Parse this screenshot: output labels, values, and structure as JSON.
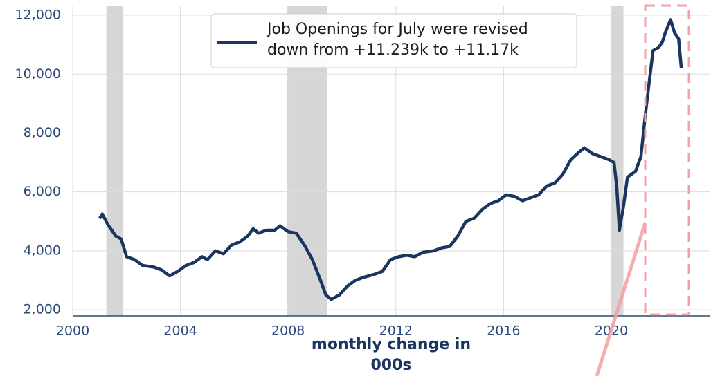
{
  "chart_data": {
    "type": "line",
    "xlabel": "monthly change in 000s",
    "xlim": [
      2000,
      2023.65
    ],
    "ylim": [
      1790,
      12330
    ],
    "xticks": [
      2000,
      2004,
      2008,
      2012,
      2016,
      2020
    ],
    "yticks": [
      {
        "value": 2000,
        "label": "2,000"
      },
      {
        "value": 4000,
        "label": "4,000"
      },
      {
        "value": 6000,
        "label": "6,000"
      },
      {
        "value": 8000,
        "label": "8,000"
      },
      {
        "value": 10000,
        "label": "10,000"
      },
      {
        "value": 12000,
        "label": "12,000"
      }
    ],
    "grid": true,
    "legend": "upper center",
    "shaded_periods": [
      [
        2001.25,
        2001.88
      ],
      [
        2007.95,
        2009.45
      ],
      [
        2020.0,
        2020.45
      ]
    ],
    "series": [
      {
        "name": "Job Openings for July were revised down from +11.239k to +11.17k",
        "color": "#1a3560",
        "x": [
          2001.0,
          2001.1,
          2001.3,
          2001.6,
          2001.8,
          2002.0,
          2002.3,
          2002.6,
          2003.0,
          2003.3,
          2003.6,
          2003.9,
          2004.2,
          2004.5,
          2004.8,
          2005.0,
          2005.3,
          2005.6,
          2005.9,
          2006.2,
          2006.5,
          2006.7,
          2006.9,
          2007.2,
          2007.5,
          2007.7,
          2008.0,
          2008.3,
          2008.6,
          2008.9,
          2009.2,
          2009.4,
          2009.6,
          2009.9,
          2010.2,
          2010.5,
          2010.8,
          2011.2,
          2011.5,
          2011.8,
          2012.1,
          2012.4,
          2012.7,
          2013.0,
          2013.4,
          2013.7,
          2014.0,
          2014.3,
          2014.6,
          2014.9,
          2015.2,
          2015.5,
          2015.8,
          2016.1,
          2016.4,
          2016.7,
          2017.0,
          2017.3,
          2017.6,
          2017.9,
          2018.2,
          2018.5,
          2018.8,
          2019.0,
          2019.3,
          2019.6,
          2019.9,
          2020.1,
          2020.2,
          2020.3,
          2020.45,
          2020.6,
          2020.9,
          2021.1,
          2021.25,
          2021.35,
          2021.55,
          2021.75,
          2021.9,
          2022.0,
          2022.2,
          2022.35,
          2022.5,
          2022.6
        ],
        "values": [
          5100,
          5250,
          4900,
          4500,
          4400,
          3800,
          3700,
          3500,
          3450,
          3350,
          3150,
          3300,
          3500,
          3600,
          3800,
          3700,
          4000,
          3900,
          4200,
          4300,
          4500,
          4750,
          4600,
          4700,
          4700,
          4850,
          4650,
          4600,
          4200,
          3700,
          3000,
          2500,
          2350,
          2500,
          2800,
          3000,
          3100,
          3200,
          3300,
          3700,
          3800,
          3850,
          3800,
          3950,
          4000,
          4100,
          4150,
          4500,
          5000,
          5100,
          5400,
          5600,
          5700,
          5900,
          5850,
          5700,
          5800,
          5900,
          6200,
          6300,
          6600,
          7100,
          7350,
          7500,
          7300,
          7200,
          7100,
          7000,
          6200,
          4700,
          5500,
          6500,
          6700,
          7200,
          8500,
          9300,
          10800,
          10900,
          11100,
          11400,
          11850,
          11400,
          11200,
          10200
        ]
      }
    ]
  }
}
